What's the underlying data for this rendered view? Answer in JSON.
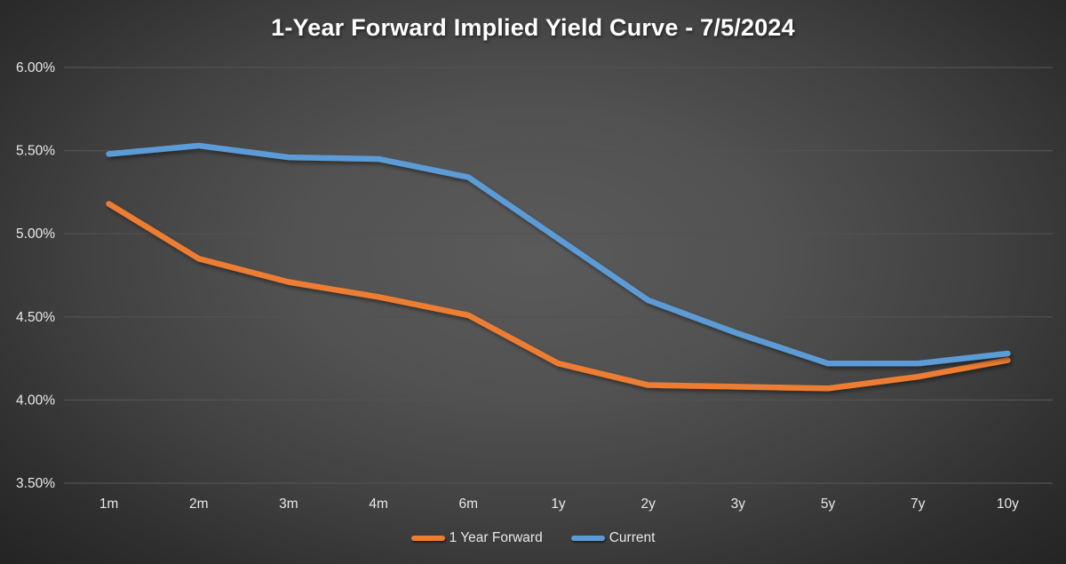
{
  "chart_data": {
    "type": "line",
    "title": "1-Year Forward Implied Yield Curve - 7/5/2024",
    "categories": [
      "1m",
      "2m",
      "3m",
      "4m",
      "6m",
      "1y",
      "2y",
      "3y",
      "5y",
      "7y",
      "10y"
    ],
    "series": [
      {
        "name": "1 Year Forward",
        "color": "#ED7D31",
        "values": [
          5.18,
          4.85,
          4.71,
          4.62,
          4.51,
          4.22,
          4.09,
          4.08,
          4.07,
          4.14,
          4.24
        ]
      },
      {
        "name": "Current",
        "color": "#5B9BD5",
        "values": [
          5.48,
          5.53,
          5.46,
          5.45,
          5.34,
          4.97,
          4.6,
          4.4,
          4.22,
          4.22,
          4.28
        ]
      }
    ],
    "y_axis": {
      "min": 3.5,
      "max": 6.0,
      "step": 0.5,
      "tick_labels": [
        "3.50%",
        "4.00%",
        "4.50%",
        "5.00%",
        "5.50%",
        "6.00%"
      ]
    },
    "xlabel": "",
    "ylabel": "",
    "grid": "horizontal",
    "legend_position": "bottom",
    "colors": {
      "background_center": "#5a5a5a",
      "background_corner": "#242424",
      "gridline": "#525252",
      "tick_text": "#e8e8e8",
      "title_text": "#ffffff"
    }
  }
}
